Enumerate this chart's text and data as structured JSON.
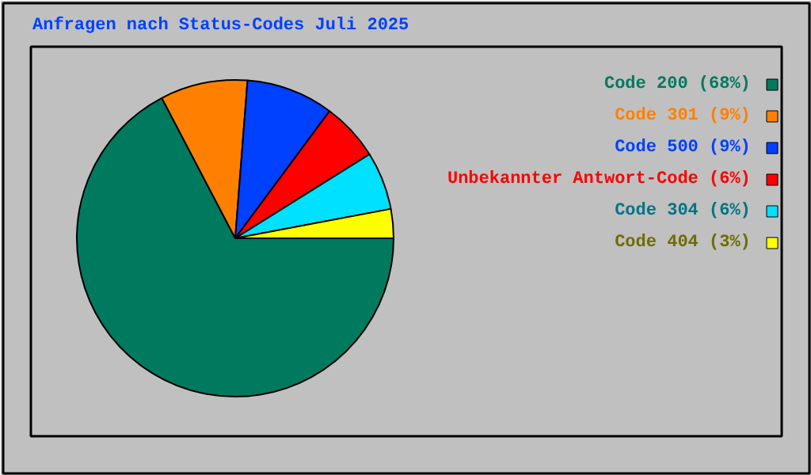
{
  "chart_data": {
    "type": "pie",
    "title": "Anfragen nach Status-Codes Juli 2025",
    "categories": [
      "Code 200",
      "Code 301",
      "Code 500",
      "Unbekannter Antwort-Code",
      "Code 304",
      "Code 404"
    ],
    "values": [
      68,
      9,
      9,
      6,
      6,
      3
    ],
    "value_labels": [
      "(68%)",
      "(9%)",
      "(9%)",
      "(6%)",
      "(6%)",
      "(3%)"
    ],
    "colors": [
      "#007a5e",
      "#ff8000",
      "#0040ff",
      "#ff0000",
      "#00e0ff",
      "#ffff00"
    ],
    "legend": "right"
  }
}
